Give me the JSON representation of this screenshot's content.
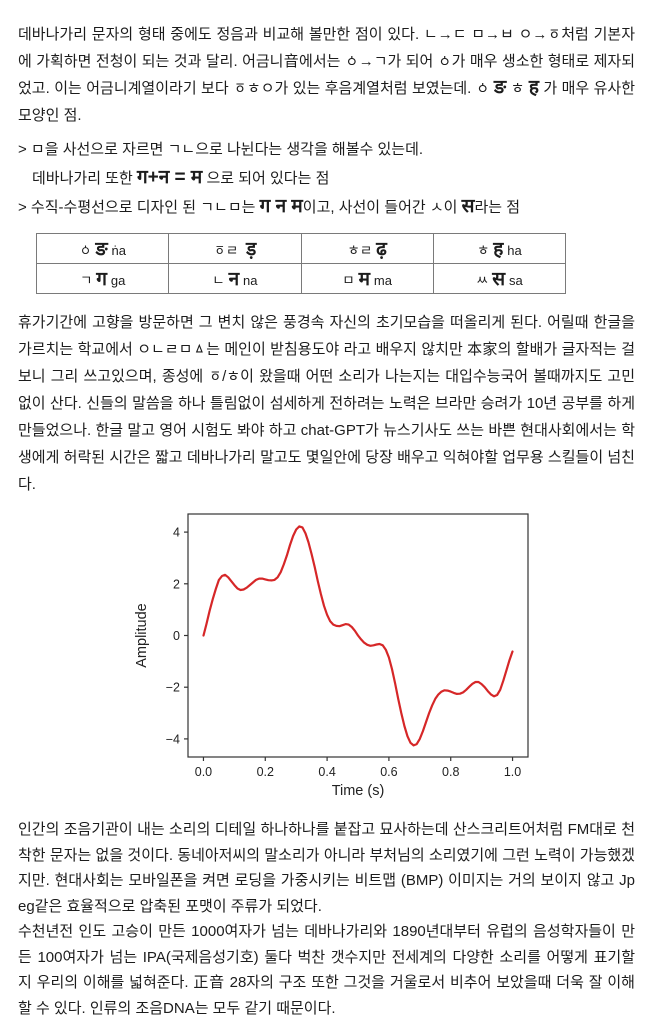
{
  "doc": {
    "para1": {
      "part1": "데바나가리 문자의 형태 중에도 정음과 비교해 볼만한 점이 있다. ㄴ→ㄷ ㅁ→ㅂ ㅇ→ㆆ처럼 기본자에 가획하면 전청이 되는 것과 달리. 어금니音에서는 ㆁ→ㄱ가 되어 ㆁ가 매우 생소한 형태로 제자되었고. 이는 어금니계열이라기 보다 ㆆㅎㅇ가 있는 후음계열처럼 보였는데. ㆁ ",
      "dev1": "ङ",
      "mid": " ㅎ ",
      "dev2": "ह",
      "part2": " 가 매우 유사한 모양인 점."
    },
    "notes": {
      "line1": "> ㅁ을 사선으로 자르면 ㄱㄴ으로 나뉜다는 생각을 해볼수 있는데.",
      "line2_pre": "데바나가리 또한  ",
      "line2_dev": "ग+न = म",
      "line2_post": " 으로 되어 있다는 점",
      "line3_pre": "> 수직-수평선으로 디자인 된 ㄱㄴㅁ는 ",
      "line3_dev1": "ग न म",
      "line3_mid": "이고, 사선이 들어간 ㅅ이 ",
      "line3_dev2": "स",
      "line3_post": "라는 점"
    },
    "table": {
      "rows": [
        [
          {
            "jamo": "ㆁ",
            "dev": "ङ",
            "roman": "ṅa"
          },
          {
            "jamo": "ㆆㄹ",
            "dev": "ड़",
            "roman": ""
          },
          {
            "jamo": "ㅎㄹ",
            "dev": "ढ़",
            "roman": ""
          },
          {
            "jamo": "ㅎ",
            "dev": "ह",
            "roman": "ha"
          }
        ],
        [
          {
            "jamo": "ㄱ",
            "dev": "ग",
            "roman": "ga"
          },
          {
            "jamo": "ㄴ",
            "dev": "न",
            "roman": "na"
          },
          {
            "jamo": "ㅁ",
            "dev": "म",
            "roman": "ma"
          },
          {
            "jamo": "ㅆ",
            "dev": "स",
            "roman": "sa"
          }
        ]
      ]
    },
    "para2": "휴가기간에 고향을 방문하면 그 변치 않은 풍경속 자신의 초기모습을 떠올리게 된다. 어릴때 한글을 가르치는 학교에서 ㅇㄴㄹㅁㅿ는 메인이 받침용도야 라고 배우지 않치만 本家의 할배가 글자적는 걸 보니 그리 쓰고있으며, 종성에 ㆆ/ㅎ이 왔을때 어떤 소리가 나는지는 대입수능국어 볼때까지도 고민없이 산다. 신들의 말씀을 하나 틀림없이 섬세하게 전하려는 노력은 브라만 승려가 10년 공부를 하게 만들었으나. 한글 말고 영어 시험도 봐야 하고 chat-GPT가 뉴스기사도 쓰는 바쁜 현대사회에서는 학생에게 허락된 시간은 짧고 데바나가리 말고도 몇일안에 당장 배우고 익혀야할 업무용 스킬들이 넘친다.",
    "para3a": "인간의 조음기관이 내는 소리의 디테일 하나하나를 붙잡고 묘사하는데 산스크리트어처럼 FM대로 천착한 문자는 없을 것이다. 동네아저씨의 말소리가 아니라 부처님의 소리였기에 그런 노력이 가능했겠지만. 현대사회는 모바일폰을 켜면 로딩을 가중시키는 비트맵 (BMP) 이미지는 거의 보이지 않고 Jpeg같은 효율적으로 압축된 포맷이 주류가 되었다.",
    "para3b": "수천년전 인도 고승이 만든 1000여자가 넘는 데바나가리와 1890년대부터 유럽의 음성학자들이 만든 100여자가 넘는 IPA(국제음성기호) 둘다 벅찬 갯수지만 전세계의 다양한 소리를 어떻게 표기할 지 우리의 이해를 넓혀준다. 正音 28자의 구조 또한 그것을 거울로서 비추어 보았을때 더욱 잘 이해할 수 있다. 인류의 조음DNA는 모두 같기 때문이다."
  },
  "chart_data": {
    "type": "line",
    "title": "",
    "xlabel": "Time (s)",
    "ylabel": "Amplitude",
    "x_ticks": [
      0.0,
      0.2,
      0.4,
      0.6,
      0.8,
      1.0
    ],
    "y_ticks": [
      -4,
      -2,
      0,
      2,
      4
    ],
    "xlim": [
      -0.05,
      1.05
    ],
    "ylim": [
      -4.7,
      4.7
    ],
    "grid": false,
    "legend": "none",
    "line_color": "#d62728",
    "series": [
      {
        "name": "waveform",
        "x": [
          0.0,
          0.01,
          0.02,
          0.03,
          0.04,
          0.05,
          0.06,
          0.07,
          0.08,
          0.09,
          0.1,
          0.11,
          0.12,
          0.13,
          0.14,
          0.15,
          0.16,
          0.17,
          0.18,
          0.19,
          0.2,
          0.21,
          0.22,
          0.23,
          0.24,
          0.25,
          0.26,
          0.27,
          0.28,
          0.29,
          0.3,
          0.31,
          0.32,
          0.33,
          0.34,
          0.35,
          0.36,
          0.37,
          0.38,
          0.39,
          0.4,
          0.41,
          0.42,
          0.43,
          0.44,
          0.45,
          0.46,
          0.47,
          0.48,
          0.49,
          0.5,
          0.51,
          0.52,
          0.53,
          0.54,
          0.55,
          0.56,
          0.57,
          0.58,
          0.59,
          0.6,
          0.61,
          0.62,
          0.63,
          0.64,
          0.65,
          0.66,
          0.67,
          0.68,
          0.69,
          0.7,
          0.71,
          0.72,
          0.73,
          0.74,
          0.75,
          0.76,
          0.77,
          0.78,
          0.79,
          0.8,
          0.81,
          0.82,
          0.83,
          0.84,
          0.85,
          0.86,
          0.87,
          0.88,
          0.89,
          0.9,
          0.91,
          0.92,
          0.93,
          0.94,
          0.95,
          0.96,
          0.97,
          0.98,
          0.99,
          1.0
        ],
        "y": [
          0.0,
          0.45,
          0.95,
          1.4,
          1.8,
          2.15,
          2.3,
          2.35,
          2.25,
          2.1,
          1.95,
          1.82,
          1.76,
          1.78,
          1.85,
          1.95,
          2.05,
          2.15,
          2.2,
          2.2,
          2.17,
          2.14,
          2.13,
          2.15,
          2.25,
          2.45,
          2.75,
          3.1,
          3.5,
          3.85,
          4.1,
          4.22,
          4.18,
          3.95,
          3.6,
          3.15,
          2.65,
          2.1,
          1.6,
          1.15,
          0.8,
          0.55,
          0.42,
          0.37,
          0.36,
          0.4,
          0.44,
          0.42,
          0.33,
          0.18,
          0.0,
          -0.15,
          -0.28,
          -0.36,
          -0.4,
          -0.38,
          -0.35,
          -0.33,
          -0.38,
          -0.55,
          -0.85,
          -1.3,
          -1.85,
          -2.45,
          -3.0,
          -3.5,
          -3.9,
          -4.15,
          -4.25,
          -4.2,
          -4.0,
          -3.7,
          -3.35,
          -3.0,
          -2.7,
          -2.45,
          -2.28,
          -2.17,
          -2.12,
          -2.13,
          -2.17,
          -2.22,
          -2.26,
          -2.25,
          -2.2,
          -2.1,
          -1.98,
          -1.87,
          -1.8,
          -1.8,
          -1.88,
          -2.0,
          -2.15,
          -2.28,
          -2.35,
          -2.3,
          -2.1,
          -1.75,
          -1.35,
          -0.95,
          -0.62
        ]
      }
    ]
  }
}
